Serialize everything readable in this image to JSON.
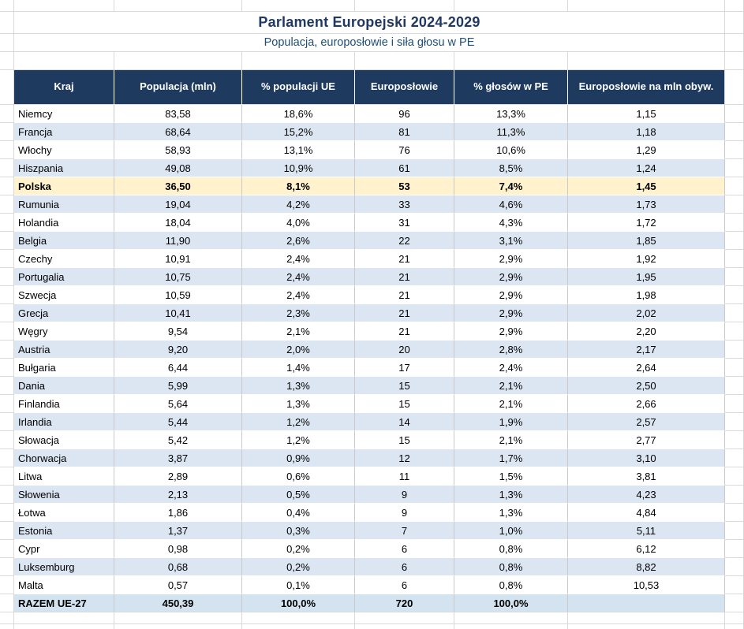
{
  "title": "Parlament Europejski 2024-2029",
  "subtitle": "Populacja, europosłowie i siła głosu w PE",
  "colors": {
    "header_bg": "#1E3A5F",
    "title_text": "#1F3864",
    "subtitle_text": "#1F4E79",
    "row_alt_bg": "#DCE6F2",
    "highlight_bg": "#FFF2CC",
    "total_bg": "#D3E4F0",
    "gridline": "#D9D9D9",
    "cell_border": "#C9C9C9"
  },
  "table": {
    "columns": [
      "Kraj",
      "Populacja (mln)",
      "% populacji UE",
      "Europosłowie",
      "% głosów w PE",
      "Europosłowie na mln obyw."
    ],
    "rows": [
      {
        "country": "Niemcy",
        "values": [
          "83,58",
          "18,6%",
          "96",
          "13,3%",
          "1,15"
        ]
      },
      {
        "country": "Francja",
        "values": [
          "68,64",
          "15,2%",
          "81",
          "11,3%",
          "1,18"
        ]
      },
      {
        "country": "Włochy",
        "values": [
          "58,93",
          "13,1%",
          "76",
          "10,6%",
          "1,29"
        ]
      },
      {
        "country": "Hiszpania",
        "values": [
          "49,08",
          "10,9%",
          "61",
          "8,5%",
          "1,24"
        ]
      },
      {
        "country": "Polska",
        "values": [
          "36,50",
          "8,1%",
          "53",
          "7,4%",
          "1,45"
        ],
        "highlight": true
      },
      {
        "country": "Rumunia",
        "values": [
          "19,04",
          "4,2%",
          "33",
          "4,6%",
          "1,73"
        ]
      },
      {
        "country": "Holandia",
        "values": [
          "18,04",
          "4,0%",
          "31",
          "4,3%",
          "1,72"
        ]
      },
      {
        "country": "Belgia",
        "values": [
          "11,90",
          "2,6%",
          "22",
          "3,1%",
          "1,85"
        ]
      },
      {
        "country": "Czechy",
        "values": [
          "10,91",
          "2,4%",
          "21",
          "2,9%",
          "1,92"
        ]
      },
      {
        "country": "Portugalia",
        "values": [
          "10,75",
          "2,4%",
          "21",
          "2,9%",
          "1,95"
        ]
      },
      {
        "country": "Szwecja",
        "values": [
          "10,59",
          "2,4%",
          "21",
          "2,9%",
          "1,98"
        ]
      },
      {
        "country": "Grecja",
        "values": [
          "10,41",
          "2,3%",
          "21",
          "2,9%",
          "2,02"
        ]
      },
      {
        "country": "Węgry",
        "values": [
          "9,54",
          "2,1%",
          "21",
          "2,9%",
          "2,20"
        ]
      },
      {
        "country": "Austria",
        "values": [
          "9,20",
          "2,0%",
          "20",
          "2,8%",
          "2,17"
        ]
      },
      {
        "country": "Bułgaria",
        "values": [
          "6,44",
          "1,4%",
          "17",
          "2,4%",
          "2,64"
        ]
      },
      {
        "country": "Dania",
        "values": [
          "5,99",
          "1,3%",
          "15",
          "2,1%",
          "2,50"
        ]
      },
      {
        "country": "Finlandia",
        "values": [
          "5,64",
          "1,3%",
          "15",
          "2,1%",
          "2,66"
        ]
      },
      {
        "country": "Irlandia",
        "values": [
          "5,44",
          "1,2%",
          "14",
          "1,9%",
          "2,57"
        ]
      },
      {
        "country": "Słowacja",
        "values": [
          "5,42",
          "1,2%",
          "15",
          "2,1%",
          "2,77"
        ]
      },
      {
        "country": "Chorwacja",
        "values": [
          "3,87",
          "0,9%",
          "12",
          "1,7%",
          "3,10"
        ]
      },
      {
        "country": "Litwa",
        "values": [
          "2,89",
          "0,6%",
          "11",
          "1,5%",
          "3,81"
        ]
      },
      {
        "country": "Słowenia",
        "values": [
          "2,13",
          "0,5%",
          "9",
          "1,3%",
          "4,23"
        ]
      },
      {
        "country": "Łotwa",
        "values": [
          "1,86",
          "0,4%",
          "9",
          "1,3%",
          "4,84"
        ]
      },
      {
        "country": "Estonia",
        "values": [
          "1,37",
          "0,3%",
          "7",
          "1,0%",
          "5,11"
        ]
      },
      {
        "country": "Cypr",
        "values": [
          "0,98",
          "0,2%",
          "6",
          "0,8%",
          "6,12"
        ]
      },
      {
        "country": "Luksemburg",
        "values": [
          "0,68",
          "0,2%",
          "6",
          "0,8%",
          "8,82"
        ]
      },
      {
        "country": "Malta",
        "values": [
          "0,57",
          "0,1%",
          "6",
          "0,8%",
          "10,53"
        ]
      }
    ],
    "total_row": {
      "country": "RAZEM UE-27",
      "values": [
        "450,39",
        "100,0%",
        "720",
        "100,0%",
        ""
      ]
    }
  }
}
